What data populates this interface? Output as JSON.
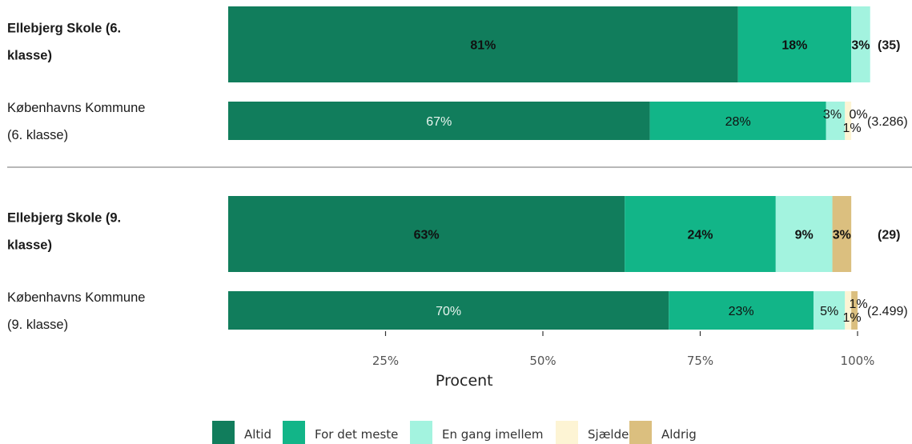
{
  "chart_data": {
    "type": "bar",
    "orientation": "horizontal",
    "stacked": true,
    "xlabel": "Procent",
    "ylabel": "",
    "xlim": [
      0,
      100
    ],
    "xticks": [
      "25%",
      "50%",
      "75%",
      "100%"
    ],
    "series_names": [
      "Altid",
      "For det meste",
      "En gang imellem",
      "Sjældent",
      "Aldrig"
    ],
    "colors": [
      "#117d5c",
      "#12b588",
      "#a3f3df",
      "#fdf4d4",
      "#dbbf7f"
    ],
    "groups": [
      {
        "rows": [
          {
            "label": "Ellebjerg Skole (6. klasse)",
            "label_lines": [
              "Ellebjerg Skole (6.",
              "klasse)"
            ],
            "bold": true,
            "values": [
              81,
              18,
              3,
              0,
              0
            ],
            "labels": [
              "81%",
              "18%",
              "3%",
              "",
              ""
            ],
            "n": "(35)"
          },
          {
            "label": "Københavns Kommune (6. klasse)",
            "label_lines": [
              "Københavns Kommune",
              "(6. klasse)"
            ],
            "bold": false,
            "values": [
              67,
              28,
              3,
              1,
              0
            ],
            "labels": [
              "67%",
              "28%",
              "3%",
              "1%",
              "0%"
            ],
            "n": "(3.286)"
          }
        ]
      },
      {
        "rows": [
          {
            "label": "Ellebjerg Skole (9. klasse)",
            "label_lines": [
              "Ellebjerg Skole (9.",
              "klasse)"
            ],
            "bold": true,
            "values": [
              63,
              24,
              9,
              0,
              3
            ],
            "labels": [
              "63%",
              "24%",
              "9%",
              "",
              "3%"
            ],
            "n": "(29)"
          },
          {
            "label": "Københavns Kommune (9. klasse)",
            "label_lines": [
              "Københavns Kommune",
              "(9. klasse)"
            ],
            "bold": false,
            "values": [
              70,
              23,
              5,
              1,
              1
            ],
            "labels": [
              "70%",
              "23%",
              "5%",
              "1%",
              "1%"
            ],
            "n": "(2.499)"
          }
        ]
      }
    ],
    "legend_position": "bottom"
  }
}
